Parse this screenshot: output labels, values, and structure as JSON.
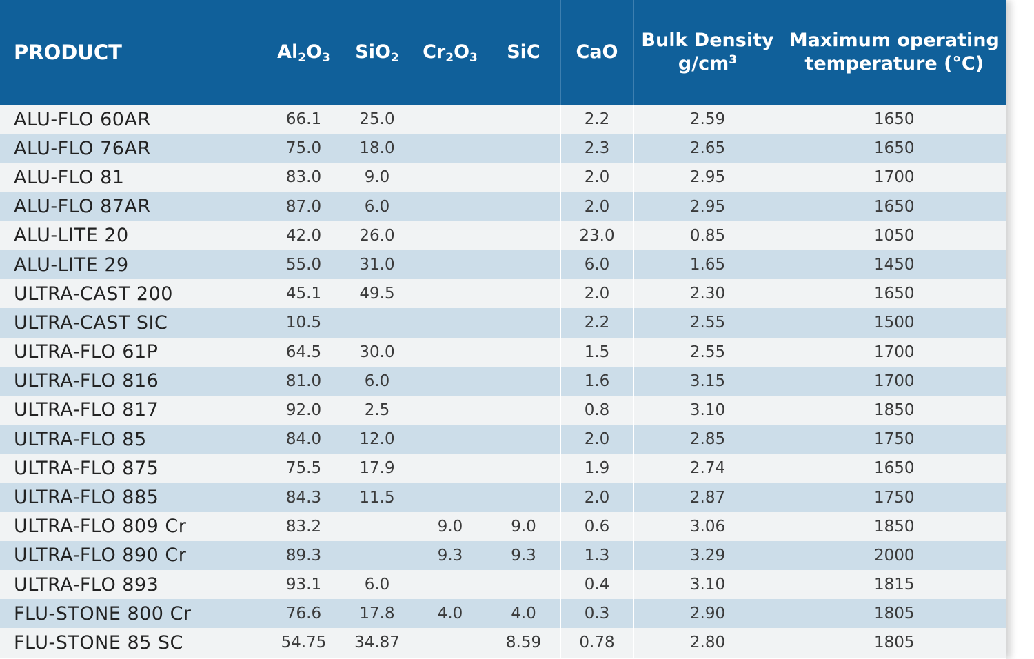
{
  "header": {
    "product": "PRODUCT",
    "al2o3": {
      "base1": "Al",
      "sub1": "2",
      "base2": "O",
      "sub2": "3"
    },
    "sio2": {
      "base1": "SiO",
      "sub1": "2"
    },
    "cr2o3": {
      "base1": "Cr",
      "sub1": "2",
      "base2": "O",
      "sub2": "3"
    },
    "sic": "SiC",
    "cao": "CaO",
    "bulk_density": {
      "line1": "Bulk Density",
      "unit": "g/cm",
      "sup": "3"
    },
    "max_temp": {
      "line1": "Maximum operating",
      "line2": "temperature (°C)"
    }
  },
  "colors": {
    "header_bg": "#10609a",
    "row_light": "#f1f3f4",
    "row_blue": "#ccdde9"
  },
  "rows": [
    {
      "product": "ALU-FLO 60AR",
      "al2o3": "66.1",
      "sio2": "25.0",
      "cr2o3": "",
      "sic": "",
      "cao": "2.2",
      "bulk_density": "2.59",
      "max_temp": "1650"
    },
    {
      "product": "ALU-FLO 76AR",
      "al2o3": "75.0",
      "sio2": "18.0",
      "cr2o3": "",
      "sic": "",
      "cao": "2.3",
      "bulk_density": "2.65",
      "max_temp": "1650"
    },
    {
      "product": "ALU-FLO 81",
      "al2o3": "83.0",
      "sio2": "9.0",
      "cr2o3": "",
      "sic": "",
      "cao": "2.0",
      "bulk_density": "2.95",
      "max_temp": "1700"
    },
    {
      "product": "ALU-FLO 87AR",
      "al2o3": "87.0",
      "sio2": "6.0",
      "cr2o3": "",
      "sic": "",
      "cao": "2.0",
      "bulk_density": "2.95",
      "max_temp": "1650"
    },
    {
      "product": "ALU-LITE 20",
      "al2o3": "42.0",
      "sio2": "26.0",
      "cr2o3": "",
      "sic": "",
      "cao": "23.0",
      "bulk_density": "0.85",
      "max_temp": "1050"
    },
    {
      "product": "ALU-LITE 29",
      "al2o3": "55.0",
      "sio2": "31.0",
      "cr2o3": "",
      "sic": "",
      "cao": "6.0",
      "bulk_density": "1.65",
      "max_temp": "1450"
    },
    {
      "product": "ULTRA-CAST 200",
      "al2o3": "45.1",
      "sio2": "49.5",
      "cr2o3": "",
      "sic": "",
      "cao": "2.0",
      "bulk_density": "2.30",
      "max_temp": "1650"
    },
    {
      "product": "ULTRA-CAST SIC",
      "al2o3": "10.5",
      "sio2": "",
      "cr2o3": "",
      "sic": "",
      "cao": "2.2",
      "bulk_density": "2.55",
      "max_temp": "1500"
    },
    {
      "product": "ULTRA-FLO 61P",
      "al2o3": "64.5",
      "sio2": "30.0",
      "cr2o3": "",
      "sic": "",
      "cao": "1.5",
      "bulk_density": "2.55",
      "max_temp": "1700"
    },
    {
      "product": "ULTRA-FLO 816",
      "al2o3": "81.0",
      "sio2": "6.0",
      "cr2o3": "",
      "sic": "",
      "cao": "1.6",
      "bulk_density": "3.15",
      "max_temp": "1700"
    },
    {
      "product": "ULTRA-FLO 817",
      "al2o3": "92.0",
      "sio2": "2.5",
      "cr2o3": "",
      "sic": "",
      "cao": "0.8",
      "bulk_density": "3.10",
      "max_temp": "1850"
    },
    {
      "product": "ULTRA-FLO 85",
      "al2o3": "84.0",
      "sio2": "12.0",
      "cr2o3": "",
      "sic": "",
      "cao": "2.0",
      "bulk_density": "2.85",
      "max_temp": "1750"
    },
    {
      "product": "ULTRA-FLO 875",
      "al2o3": "75.5",
      "sio2": "17.9",
      "cr2o3": "",
      "sic": "",
      "cao": "1.9",
      "bulk_density": "2.74",
      "max_temp": "1650"
    },
    {
      "product": "ULTRA-FLO 885",
      "al2o3": "84.3",
      "sio2": "11.5",
      "cr2o3": "",
      "sic": "",
      "cao": "2.0",
      "bulk_density": "2.87",
      "max_temp": "1750"
    },
    {
      "product": "ULTRA-FLO 809 Cr",
      "al2o3": "83.2",
      "sio2": "",
      "cr2o3": "9.0",
      "sic": "9.0",
      "cao": "0.6",
      "bulk_density": "3.06",
      "max_temp": "1850"
    },
    {
      "product": "ULTRA-FLO 890 Cr",
      "al2o3": "89.3",
      "sio2": "",
      "cr2o3": "9.3",
      "sic": "9.3",
      "cao": "1.3",
      "bulk_density": "3.29",
      "max_temp": "2000"
    },
    {
      "product": "ULTRA-FLO 893",
      "al2o3": "93.1",
      "sio2": "6.0",
      "cr2o3": "",
      "sic": "",
      "cao": "0.4",
      "bulk_density": "3.10",
      "max_temp": "1815"
    },
    {
      "product": "FLU-STONE 800 Cr",
      "al2o3": "76.6",
      "sio2": "17.8",
      "cr2o3": "4.0",
      "sic": "4.0",
      "cao": "0.3",
      "bulk_density": "2.90",
      "max_temp": "1805"
    },
    {
      "product": "FLU-STONE 85 SC",
      "al2o3": "54.75",
      "sio2": "34.87",
      "cr2o3": "",
      "sic": "8.59",
      "cao": "0.78",
      "bulk_density": "2.80",
      "max_temp": "1805"
    }
  ]
}
